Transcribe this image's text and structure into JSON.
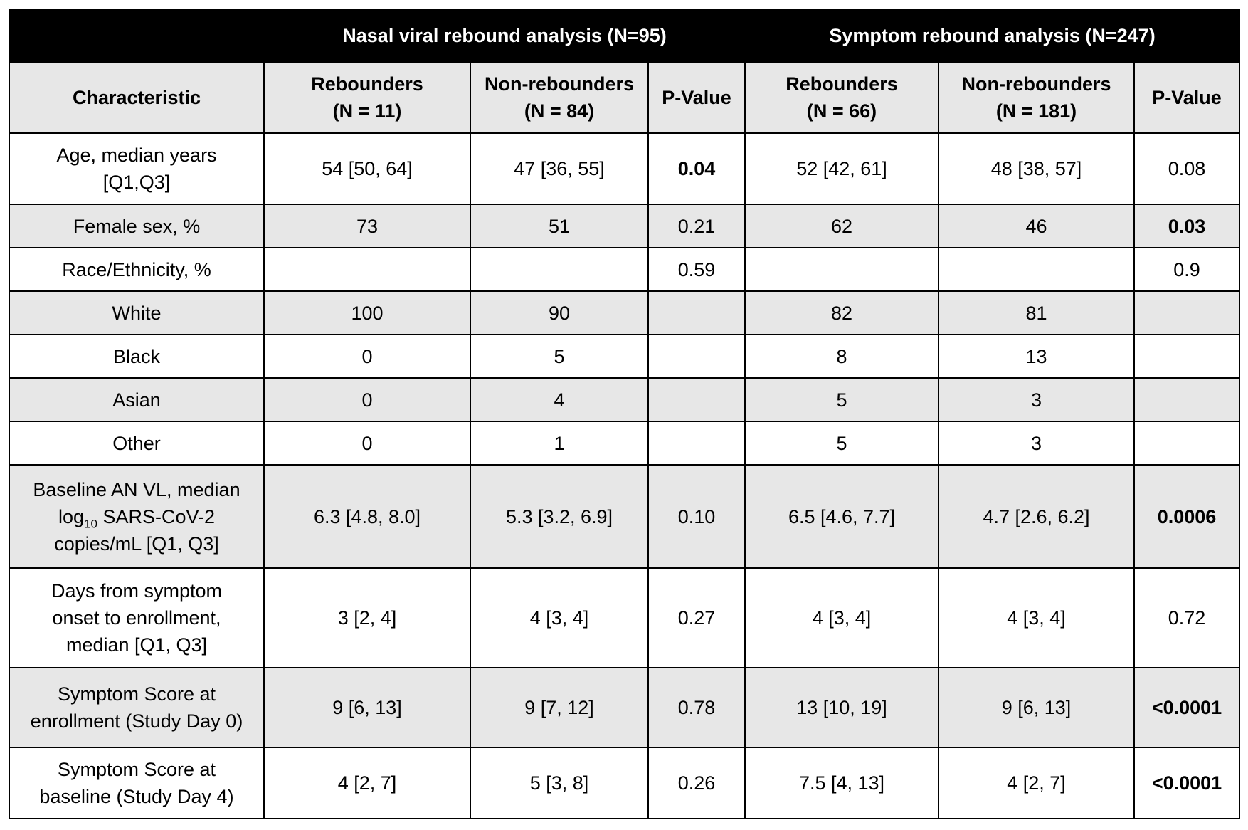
{
  "header": {
    "group_nasal": "Nasal viral rebound analysis (N=95)",
    "group_symptom": "Symptom rebound analysis (N=247)"
  },
  "columns": {
    "characteristic": "Characteristic",
    "nasal_rebounders": "Rebounders\n(N = 11)",
    "nasal_non_rebounders": "Non-rebounders\n(N = 84)",
    "nasal_p": "P-Value",
    "symptom_rebounders": "Rebounders\n(N = 66)",
    "symptom_non_rebounders": "Non-rebounders\n(N = 181)",
    "symptom_p": "P-Value"
  },
  "rows": [
    {
      "label": "Age, median years\n[Q1,Q3]",
      "c1": "54 [50, 64]",
      "c2": "47 [36, 55]",
      "c3": "0.04",
      "c4": "52 [42, 61]",
      "c5": "48 [38, 57]",
      "c6": "0.08"
    },
    {
      "label": "Female sex, %",
      "c1": "73",
      "c2": "51",
      "c3": "0.21",
      "c4": "62",
      "c5": "46",
      "c6": "0.03"
    },
    {
      "label": "Race/Ethnicity, %",
      "c1": "",
      "c2": "",
      "c3": "0.59",
      "c4": "",
      "c5": "",
      "c6": "0.9"
    },
    {
      "label": "White",
      "c1": "100",
      "c2": "90",
      "c3": "",
      "c4": "82",
      "c5": "81",
      "c6": ""
    },
    {
      "label": "Black",
      "c1": "0",
      "c2": "5",
      "c3": "",
      "c4": "8",
      "c5": "13",
      "c6": ""
    },
    {
      "label": "Asian",
      "c1": "0",
      "c2": "4",
      "c3": "",
      "c4": "5",
      "c5": "3",
      "c6": ""
    },
    {
      "label": "Other",
      "c1": "0",
      "c2": "1",
      "c3": "",
      "c4": "5",
      "c5": "3",
      "c6": ""
    },
    {
      "label_line1": "Baseline AN VL, median",
      "label_line2_pre": "log",
      "label_line2_sub": "10",
      "label_line2_post": " SARS-CoV-2",
      "label_line3": "copies/mL [Q1, Q3]",
      "c1": "6.3 [4.8, 8.0]",
      "c2": "5.3 [3.2, 6.9]",
      "c3": "0.10",
      "c4": "6.5 [4.6, 7.7]",
      "c5": "4.7 [2.6, 6.2]",
      "c6": "0.0006"
    },
    {
      "label": "Days from symptom\nonset to enrollment,\nmedian [Q1, Q3]",
      "c1": "3 [2, 4]",
      "c2": "4 [3, 4]",
      "c3": "0.27",
      "c4": "4 [3, 4]",
      "c5": "4 [3, 4]",
      "c6": "0.72"
    },
    {
      "label": "Symptom Score at\nenrollment (Study Day 0)",
      "c1": "9 [6, 13]",
      "c2": "9 [7, 12]",
      "c3": "0.78",
      "c4": "13 [10, 19]",
      "c5": "9 [6, 13]",
      "c6": "<0.0001"
    },
    {
      "label": "Symptom Score at\nbaseline (Study Day 4)",
      "c1": "4 [2, 7]",
      "c2": "5 [3, 8]",
      "c3": "0.26",
      "c4": "7.5 [4, 13]",
      "c5": "4 [2, 7]",
      "c6": "<0.0001"
    }
  ]
}
